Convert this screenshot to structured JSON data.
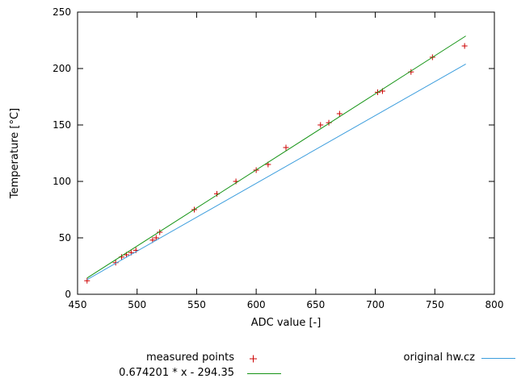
{
  "chart_data": {
    "type": "scatter",
    "title": "",
    "xlabel": "ADC value [-]",
    "ylabel": "Temperature [°C]",
    "xlim": [
      450,
      800
    ],
    "ylim": [
      0,
      250
    ],
    "x_ticks": [
      450,
      500,
      550,
      600,
      650,
      700,
      750,
      800
    ],
    "y_ticks": [
      0,
      50,
      100,
      150,
      200,
      250
    ],
    "grid": false,
    "legend_position": "below-plot",
    "series": [
      {
        "name": "measured points",
        "kind": "points",
        "marker": "plus",
        "color": "#cc0000",
        "points": [
          [
            458,
            12
          ],
          [
            482,
            28
          ],
          [
            487,
            33
          ],
          [
            491,
            35
          ],
          [
            495,
            37
          ],
          [
            499,
            39
          ],
          [
            513,
            48
          ],
          [
            516,
            50
          ],
          [
            519,
            55
          ],
          [
            548,
            75
          ],
          [
            567,
            89
          ],
          [
            583,
            100
          ],
          [
            600,
            110
          ],
          [
            610,
            115
          ],
          [
            625,
            130
          ],
          [
            654,
            150
          ],
          [
            661,
            152
          ],
          [
            670,
            160
          ],
          [
            702,
            179
          ],
          [
            706,
            180
          ],
          [
            730,
            197
          ],
          [
            748,
            210
          ],
          [
            775,
            220
          ]
        ]
      },
      {
        "name": "0.674201 * x - 294.35",
        "kind": "line",
        "color": "#159415",
        "slope": 0.674201,
        "intercept": -294.35,
        "x_range": [
          458,
          776
        ]
      },
      {
        "name": "original hw.cz",
        "kind": "line",
        "color": "#3b9ddd",
        "points": [
          [
            458,
            13
          ],
          [
            776,
            204
          ]
        ]
      }
    ]
  }
}
